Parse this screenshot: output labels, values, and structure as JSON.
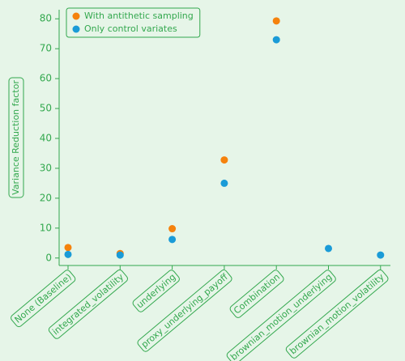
{
  "chart_data": {
    "type": "scatter",
    "y_label": "Variance Reduction factor",
    "categories": [
      "None (Baseline)",
      "integrated_volatility",
      "underlying",
      "proxy_underlying_payoff",
      "Combination",
      "brownian_motion_underlying",
      "brownian_motion_volatility"
    ],
    "series": [
      {
        "name": "With antithetic sampling",
        "color": "#f5820d",
        "values": [
          3.5,
          1.5,
          9.8,
          32.8,
          79.3,
          null,
          null
        ]
      },
      {
        "name": "Only control variates",
        "color": "#1a9bd7",
        "values": [
          1.2,
          1.0,
          6.2,
          25,
          73,
          3.2,
          1.0
        ]
      }
    ],
    "ylim": [
      -2.5,
      82.5
    ],
    "yticks": [
      0,
      10,
      20,
      30,
      40,
      50,
      60,
      70,
      80
    ],
    "legend": "upper left"
  }
}
